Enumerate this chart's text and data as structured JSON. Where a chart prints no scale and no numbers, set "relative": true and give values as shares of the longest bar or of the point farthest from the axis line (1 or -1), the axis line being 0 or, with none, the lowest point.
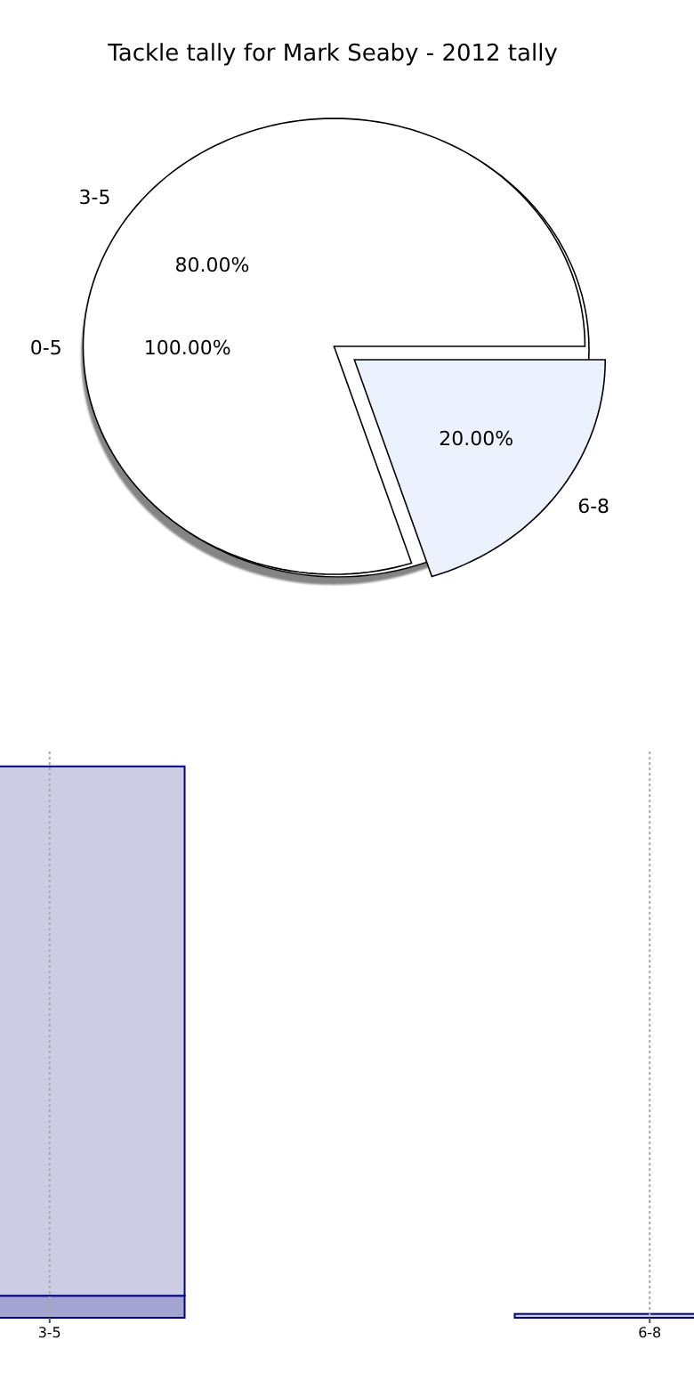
{
  "chart_data": [
    {
      "type": "pie",
      "title": "Tackle tally for Mark Seaby - 2012 tally",
      "categories": [
        "0-5"
      ],
      "values": [
        100
      ],
      "colors": [
        "#ffffff"
      ],
      "value_labels": [
        "100.00%"
      ]
    },
    {
      "type": "pie",
      "categories": [
        "3-5",
        "6-8"
      ],
      "values": [
        80,
        20
      ],
      "colors": [
        "#ffffff",
        "#ebf1fd"
      ],
      "value_labels": [
        "80.00%",
        "20.00%"
      ]
    },
    {
      "type": "bar",
      "relative": true,
      "stacked": true,
      "grid": "x",
      "categories": [
        "3-5",
        "6-8"
      ],
      "series": [
        {
          "color": "#a4a4d0",
          "values": [
            0.04,
            0
          ]
        },
        {
          "color": "#ccccE4",
          "values": [
            0.96,
            0.007
          ]
        }
      ]
    }
  ]
}
